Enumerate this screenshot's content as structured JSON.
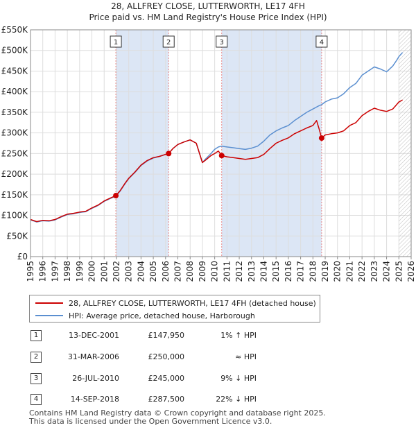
{
  "title": {
    "line1": "28, ALLFREY CLOSE, LUTTERWORTH, LE17 4FH",
    "line2": "Price paid vs. HM Land Registry's House Price Index (HPI)"
  },
  "colors": {
    "property": "#cc0000",
    "hpi": "#5b8fd0",
    "shade": "#dce6f5",
    "grid": "#dddddd",
    "marker_line": "#e88888"
  },
  "chart_data": {
    "type": "line",
    "x_range": [
      1995,
      2026
    ],
    "ylim": [
      0,
      550000
    ],
    "y_ticks": [
      {
        "value": 0,
        "label": "£0"
      },
      {
        "value": 50000,
        "label": "£50K"
      },
      {
        "value": 100000,
        "label": "£100K"
      },
      {
        "value": 150000,
        "label": "£150K"
      },
      {
        "value": 200000,
        "label": "£200K"
      },
      {
        "value": 250000,
        "label": "£250K"
      },
      {
        "value": 300000,
        "label": "£300K"
      },
      {
        "value": 350000,
        "label": "£350K"
      },
      {
        "value": 400000,
        "label": "£400K"
      },
      {
        "value": 450000,
        "label": "£450K"
      },
      {
        "value": 500000,
        "label": "£500K"
      },
      {
        "value": 550000,
        "label": "£550K"
      }
    ],
    "x_ticks": [
      "1995",
      "1996",
      "1997",
      "1998",
      "1999",
      "2000",
      "2001",
      "2002",
      "2003",
      "2004",
      "2005",
      "2006",
      "2007",
      "2008",
      "2009",
      "2010",
      "2011",
      "2012",
      "2013",
      "2014",
      "2015",
      "2016",
      "2017",
      "2018",
      "2019",
      "2020",
      "2021",
      "2022",
      "2023",
      "2024",
      "2025",
      "2026"
    ],
    "shaded_spans": [
      [
        2001.95,
        2006.25
      ],
      [
        2010.57,
        2018.71
      ]
    ],
    "hatch_from": 2025.0,
    "series": [
      {
        "name": "28, ALLFREY CLOSE, LUTTERWORTH, LE17 4FH (detached house)",
        "color": "#cc0000",
        "points": [
          [
            1995.0,
            90000
          ],
          [
            1995.5,
            85000
          ],
          [
            1996.0,
            88000
          ],
          [
            1996.5,
            87000
          ],
          [
            1997.0,
            90000
          ],
          [
            1997.5,
            97000
          ],
          [
            1998.0,
            103000
          ],
          [
            1998.5,
            105000
          ],
          [
            1999.0,
            108000
          ],
          [
            1999.5,
            110000
          ],
          [
            2000.0,
            118000
          ],
          [
            2000.5,
            125000
          ],
          [
            2001.0,
            135000
          ],
          [
            2001.5,
            142000
          ],
          [
            2001.95,
            147950
          ],
          [
            2002.3,
            160000
          ],
          [
            2002.7,
            178000
          ],
          [
            2003.0,
            190000
          ],
          [
            2003.5,
            205000
          ],
          [
            2004.0,
            222000
          ],
          [
            2004.5,
            233000
          ],
          [
            2005.0,
            240000
          ],
          [
            2005.5,
            243000
          ],
          [
            2006.0,
            248000
          ],
          [
            2006.25,
            250000
          ],
          [
            2006.6,
            262000
          ],
          [
            2007.0,
            272000
          ],
          [
            2007.5,
            278000
          ],
          [
            2008.0,
            283000
          ],
          [
            2008.5,
            275000
          ],
          [
            2009.0,
            228000
          ],
          [
            2009.3,
            235000
          ],
          [
            2009.7,
            245000
          ],
          [
            2010.0,
            250000
          ],
          [
            2010.3,
            256000
          ],
          [
            2010.57,
            245000
          ],
          [
            2011.0,
            242000
          ],
          [
            2011.5,
            240000
          ],
          [
            2012.0,
            238000
          ],
          [
            2012.5,
            236000
          ],
          [
            2013.0,
            238000
          ],
          [
            2013.5,
            240000
          ],
          [
            2014.0,
            248000
          ],
          [
            2014.5,
            262000
          ],
          [
            2015.0,
            275000
          ],
          [
            2015.5,
            282000
          ],
          [
            2016.0,
            288000
          ],
          [
            2016.5,
            298000
          ],
          [
            2017.0,
            305000
          ],
          [
            2017.5,
            312000
          ],
          [
            2018.0,
            318000
          ],
          [
            2018.3,
            330000
          ],
          [
            2018.5,
            310000
          ],
          [
            2018.71,
            287500
          ],
          [
            2019.0,
            295000
          ],
          [
            2019.5,
            298000
          ],
          [
            2020.0,
            300000
          ],
          [
            2020.5,
            305000
          ],
          [
            2021.0,
            318000
          ],
          [
            2021.5,
            325000
          ],
          [
            2022.0,
            342000
          ],
          [
            2022.5,
            352000
          ],
          [
            2023.0,
            360000
          ],
          [
            2023.5,
            355000
          ],
          [
            2024.0,
            352000
          ],
          [
            2024.5,
            358000
          ],
          [
            2024.8,
            368000
          ],
          [
            2025.0,
            375000
          ],
          [
            2025.3,
            380000
          ]
        ]
      },
      {
        "name": "HPI: Average price, detached house, Harborough",
        "color": "#5b8fd0",
        "points": [
          [
            1995.0,
            89000
          ],
          [
            1995.5,
            84000
          ],
          [
            1996.0,
            87000
          ],
          [
            1996.5,
            86000
          ],
          [
            1997.0,
            89000
          ],
          [
            1997.5,
            96000
          ],
          [
            1998.0,
            102000
          ],
          [
            1998.5,
            104000
          ],
          [
            1999.0,
            107000
          ],
          [
            1999.5,
            109000
          ],
          [
            2000.0,
            117000
          ],
          [
            2000.5,
            124000
          ],
          [
            2001.0,
            134000
          ],
          [
            2001.5,
            141000
          ],
          [
            2001.95,
            146500
          ],
          [
            2002.3,
            159000
          ],
          [
            2002.7,
            177000
          ],
          [
            2003.0,
            189000
          ],
          [
            2003.5,
            204000
          ],
          [
            2004.0,
            221000
          ],
          [
            2004.5,
            232000
          ],
          [
            2005.0,
            239000
          ],
          [
            2005.5,
            243000
          ],
          [
            2006.0,
            248000
          ],
          [
            2006.25,
            250000
          ],
          [
            2006.6,
            262000
          ],
          [
            2007.0,
            272000
          ],
          [
            2007.5,
            278000
          ],
          [
            2008.0,
            283000
          ],
          [
            2008.5,
            275000
          ],
          [
            2009.0,
            228000
          ],
          [
            2009.3,
            238000
          ],
          [
            2009.7,
            250000
          ],
          [
            2010.0,
            260000
          ],
          [
            2010.3,
            266000
          ],
          [
            2010.57,
            268000
          ],
          [
            2011.0,
            266000
          ],
          [
            2011.5,
            264000
          ],
          [
            2012.0,
            262000
          ],
          [
            2012.5,
            260000
          ],
          [
            2013.0,
            263000
          ],
          [
            2013.5,
            268000
          ],
          [
            2014.0,
            280000
          ],
          [
            2014.5,
            295000
          ],
          [
            2015.0,
            305000
          ],
          [
            2015.5,
            312000
          ],
          [
            2016.0,
            318000
          ],
          [
            2016.5,
            330000
          ],
          [
            2017.0,
            340000
          ],
          [
            2017.5,
            350000
          ],
          [
            2018.0,
            358000
          ],
          [
            2018.5,
            366000
          ],
          [
            2018.71,
            368500
          ],
          [
            2019.0,
            375000
          ],
          [
            2019.5,
            382000
          ],
          [
            2020.0,
            385000
          ],
          [
            2020.5,
            395000
          ],
          [
            2021.0,
            410000
          ],
          [
            2021.5,
            420000
          ],
          [
            2022.0,
            440000
          ],
          [
            2022.5,
            450000
          ],
          [
            2023.0,
            460000
          ],
          [
            2023.5,
            455000
          ],
          [
            2024.0,
            448000
          ],
          [
            2024.5,
            462000
          ],
          [
            2024.8,
            475000
          ],
          [
            2025.0,
            485000
          ],
          [
            2025.3,
            495000
          ]
        ]
      }
    ],
    "sales": [
      {
        "n": "1",
        "x": 2001.95,
        "y": 147950
      },
      {
        "n": "2",
        "x": 2006.25,
        "y": 250000
      },
      {
        "n": "3",
        "x": 2010.57,
        "y": 245000
      },
      {
        "n": "4",
        "x": 2018.71,
        "y": 287500
      }
    ]
  },
  "legend": {
    "property_label": "28, ALLFREY CLOSE, LUTTERWORTH, LE17 4FH (detached house)",
    "hpi_label": "HPI: Average price, detached house, Harborough"
  },
  "transactions": [
    {
      "n": "1",
      "date": "13-DEC-2001",
      "price": "£147,950",
      "hpi": "1% ↑ HPI"
    },
    {
      "n": "2",
      "date": "31-MAR-2006",
      "price": "£250,000",
      "hpi": "≈ HPI"
    },
    {
      "n": "3",
      "date": "26-JUL-2010",
      "price": "£245,000",
      "hpi": "9% ↓ HPI"
    },
    {
      "n": "4",
      "date": "14-SEP-2018",
      "price": "£287,500",
      "hpi": "22% ↓ HPI"
    }
  ],
  "footer": {
    "line1": "Contains HM Land Registry data © Crown copyright and database right 2025.",
    "line2": "This data is licensed under the Open Government Licence v3.0."
  }
}
